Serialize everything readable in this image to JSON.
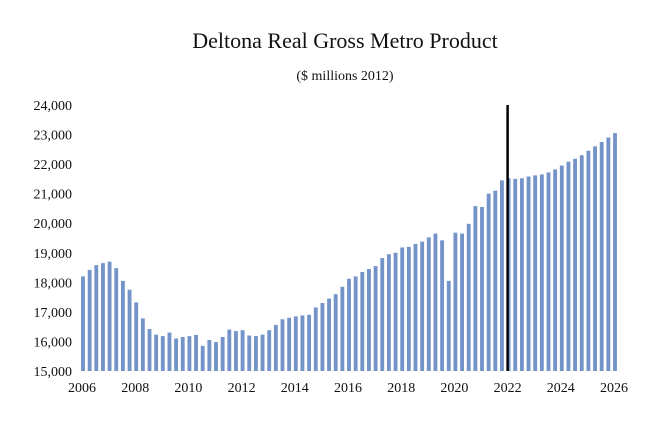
{
  "chart_data": {
    "type": "bar",
    "title": "Deltona Real Gross Metro Product",
    "subtitle": "($ millions 2012)",
    "xlabel": "",
    "ylabel": "",
    "ylim": [
      15000,
      24000
    ],
    "xlim": [
      2006,
      2026
    ],
    "y_ticks": [
      15000,
      16000,
      17000,
      18000,
      19000,
      20000,
      21000,
      22000,
      23000,
      24000
    ],
    "y_tick_labels": [
      "15,000",
      "16,000",
      "17,000",
      "18,000",
      "19,000",
      "20,000",
      "21,000",
      "22,000",
      "23,000",
      "24,000"
    ],
    "x_ticks": [
      2006,
      2008,
      2010,
      2012,
      2014,
      2016,
      2018,
      2020,
      2022,
      2024,
      2026
    ],
    "x_tick_labels": [
      "2006",
      "2008",
      "2010",
      "2012",
      "2014",
      "2016",
      "2018",
      "2020",
      "2022",
      "2024",
      "2026"
    ],
    "grid": false,
    "bar_color": "#7393c9",
    "marker_line": {
      "x": 2022,
      "color": "#000000"
    },
    "series": [
      {
        "name": "Real Gross Metro Product",
        "x": [
          2006,
          2006.25,
          2006.5,
          2006.75,
          2007,
          2007.25,
          2007.5,
          2007.75,
          2008,
          2008.25,
          2008.5,
          2008.75,
          2009,
          2009.25,
          2009.5,
          2009.75,
          2010,
          2010.25,
          2010.5,
          2010.75,
          2011,
          2011.25,
          2011.5,
          2011.75,
          2012,
          2012.25,
          2012.5,
          2012.75,
          2013,
          2013.25,
          2013.5,
          2013.75,
          2014,
          2014.25,
          2014.5,
          2014.75,
          2015,
          2015.25,
          2015.5,
          2015.75,
          2016,
          2016.25,
          2016.5,
          2016.75,
          2017,
          2017.25,
          2017.5,
          2017.75,
          2018,
          2018.25,
          2018.5,
          2018.75,
          2019,
          2019.25,
          2019.5,
          2019.75,
          2020,
          2020.25,
          2020.5,
          2020.75,
          2021,
          2021.25,
          2021.5,
          2021.75,
          2022,
          2022.25,
          2022.5,
          2022.75,
          2023,
          2023.25,
          2023.5,
          2023.75,
          2024,
          2024.25,
          2024.5,
          2024.75,
          2025,
          2025.25,
          2025.5,
          2025.75,
          2026
        ],
        "values": [
          18200,
          18420,
          18580,
          18650,
          18700,
          18480,
          18050,
          17750,
          17320,
          16780,
          16420,
          16230,
          16180,
          16300,
          16100,
          16150,
          16180,
          16220,
          15850,
          16050,
          15980,
          16150,
          16400,
          16350,
          16380,
          16200,
          16180,
          16230,
          16380,
          16560,
          16750,
          16800,
          16850,
          16880,
          16900,
          17150,
          17300,
          17450,
          17600,
          17850,
          18120,
          18200,
          18350,
          18450,
          18550,
          18820,
          18950,
          19000,
          19180,
          19200,
          19300,
          19380,
          19520,
          19650,
          19420,
          18050,
          19680,
          19650,
          19980,
          20580,
          20550,
          21000,
          21100,
          21450,
          21520,
          21500,
          21520,
          21580,
          21620,
          21650,
          21720,
          21820,
          21950,
          22080,
          22180,
          22300,
          22450,
          22600,
          22750,
          22900,
          23050
        ]
      }
    ]
  }
}
